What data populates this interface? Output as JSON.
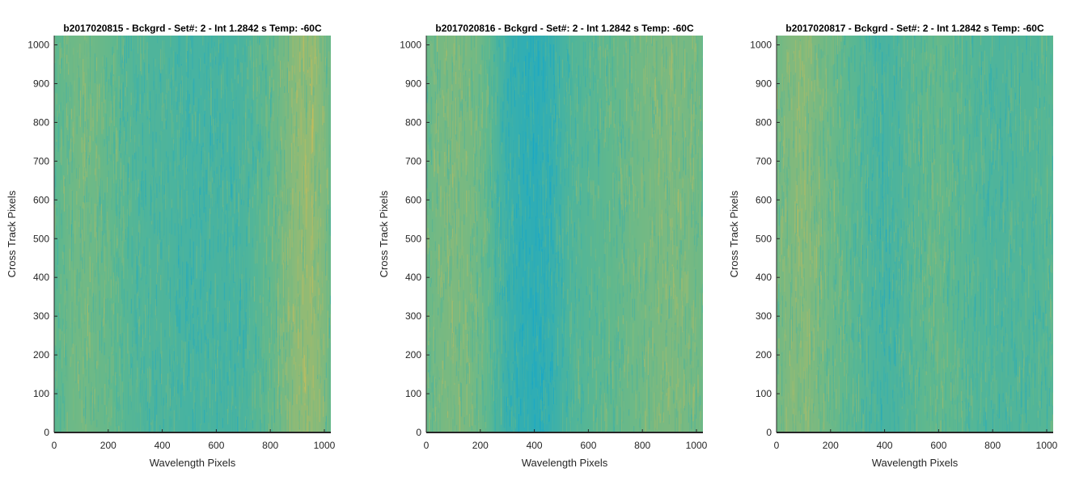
{
  "figure": {
    "background": "#ffffff"
  },
  "colors": {
    "heat_low": "#0ea6cf",
    "heat_mid": "#5fb88e",
    "heat_high": "#d7bd52",
    "axis": "#262626"
  },
  "chart_data": [
    {
      "type": "heatmap",
      "title": "b2017020815 - Bckgrd - Set#: 2 - Int 1.2842 s Temp: -60C",
      "xlabel": "Wavelength Pixels",
      "ylabel": "Cross Track Pixels",
      "xlim": [
        0,
        1024
      ],
      "ylim": [
        0,
        1024
      ],
      "xticks": [
        0,
        200,
        400,
        600,
        800,
        1000
      ],
      "yticks": [
        0,
        100,
        200,
        300,
        400,
        500,
        600,
        700,
        800,
        900,
        1000
      ],
      "colormap": "parula",
      "column_profile": {
        "x": [
          0,
          50,
          100,
          150,
          200,
          250,
          300,
          350,
          400,
          450,
          500,
          550,
          600,
          650,
          700,
          750,
          800,
          850,
          900,
          950,
          1000,
          1024
        ],
        "level": [
          0.48,
          0.55,
          0.58,
          0.55,
          0.52,
          0.46,
          0.42,
          0.4,
          0.4,
          0.37,
          0.35,
          0.35,
          0.37,
          0.35,
          0.38,
          0.45,
          0.52,
          0.6,
          0.7,
          0.72,
          0.62,
          0.5
        ]
      }
    },
    {
      "type": "heatmap",
      "title": "b2017020816 - Bckgrd - Set#: 2 - Int 1.2842 s Temp: -60C",
      "xlabel": "Wavelength Pixels",
      "ylabel": "Cross Track Pixels",
      "xlim": [
        0,
        1024
      ],
      "ylim": [
        0,
        1024
      ],
      "xticks": [
        0,
        200,
        400,
        600,
        800,
        1000
      ],
      "yticks": [
        0,
        100,
        200,
        300,
        400,
        500,
        600,
        700,
        800,
        900,
        1000
      ],
      "colormap": "parula",
      "column_profile": {
        "x": [
          0,
          50,
          100,
          150,
          200,
          250,
          300,
          350,
          400,
          450,
          500,
          550,
          600,
          650,
          700,
          750,
          800,
          850,
          900,
          950,
          1000,
          1024
        ],
        "level": [
          0.55,
          0.6,
          0.62,
          0.6,
          0.55,
          0.42,
          0.28,
          0.22,
          0.2,
          0.24,
          0.35,
          0.42,
          0.45,
          0.48,
          0.52,
          0.55,
          0.58,
          0.6,
          0.62,
          0.6,
          0.58,
          0.55
        ]
      }
    },
    {
      "type": "heatmap",
      "title": "b2017020817 - Bckgrd - Set#: 2 - Int 1.2842 s Temp: -60C",
      "xlabel": "Wavelength Pixels",
      "ylabel": "Cross Track Pixels",
      "xlim": [
        0,
        1024
      ],
      "ylim": [
        0,
        1024
      ],
      "xticks": [
        0,
        200,
        400,
        600,
        800,
        1000
      ],
      "yticks": [
        0,
        100,
        200,
        300,
        400,
        500,
        600,
        700,
        800,
        900,
        1000
      ],
      "colormap": "parula",
      "column_profile": {
        "x": [
          0,
          50,
          100,
          150,
          200,
          250,
          300,
          350,
          400,
          450,
          500,
          550,
          600,
          650,
          700,
          750,
          800,
          850,
          900,
          950,
          1000,
          1024
        ],
        "level": [
          0.58,
          0.64,
          0.66,
          0.6,
          0.55,
          0.5,
          0.45,
          0.4,
          0.36,
          0.4,
          0.45,
          0.5,
          0.52,
          0.48,
          0.45,
          0.42,
          0.4,
          0.4,
          0.42,
          0.42,
          0.45,
          0.45
        ]
      }
    }
  ]
}
